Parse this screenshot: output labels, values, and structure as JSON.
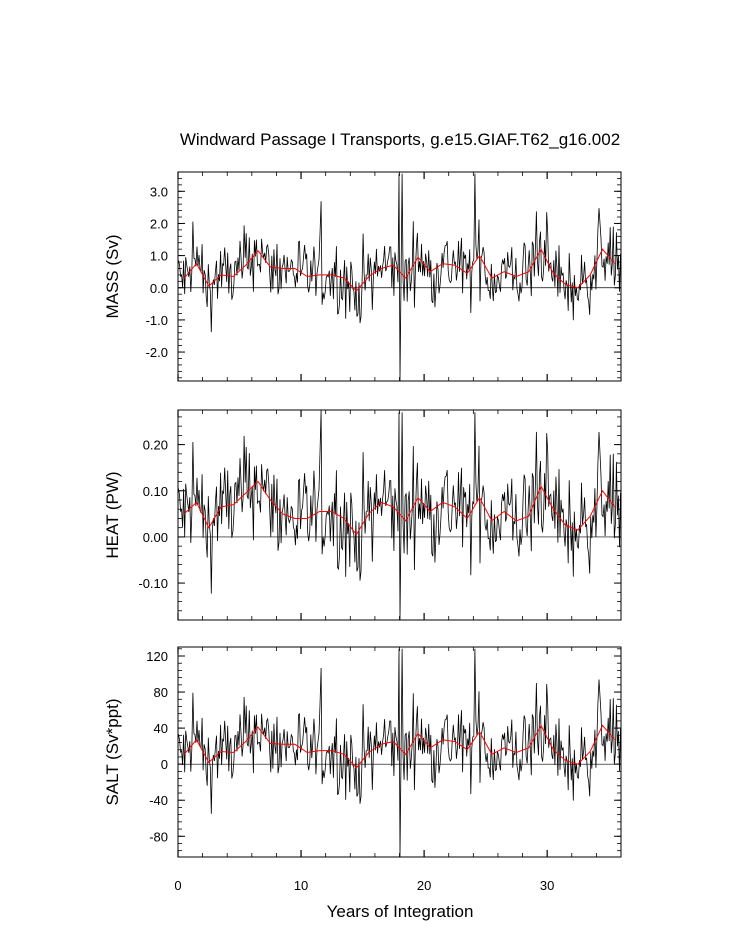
{
  "chart_data": {
    "type": "line",
    "title": "Windward Passage I Transports, g.e15.GIAF.T62_g16.002",
    "xlabel": "Years of Integration",
    "xlim": [
      0,
      36
    ],
    "x_ticks": [
      0,
      10,
      20,
      30
    ],
    "x_tick_labels": [
      "0",
      "10",
      "20",
      "30"
    ],
    "series_styles": {
      "monthly": "#000000",
      "annual": "#ff0000"
    },
    "annual_mean_x": [
      0.5,
      1.5,
      2.5,
      3.5,
      4.5,
      5.5,
      6.5,
      7.5,
      8.5,
      9.5,
      10.5,
      11.5,
      12.5,
      13.5,
      14.5,
      15.5,
      16.5,
      17.5,
      18.5,
      19.5,
      20.5,
      21.5,
      22.5,
      23.5,
      24.5,
      25.5,
      26.5,
      27.5,
      28.5,
      29.5,
      30.5,
      31.5,
      32.5,
      33.5,
      34.5,
      35.5
    ],
    "panels": [
      {
        "ylabel": "MASS (Sv)",
        "ylim": [
          -2.9,
          3.6
        ],
        "y_ticks": [
          -2,
          -1,
          0,
          1,
          2,
          3
        ],
        "y_tick_labels": [
          "-2.0",
          "-1.0",
          "0.0",
          "1.0",
          "2.0",
          "3.0"
        ],
        "annual_mean": [
          0.3,
          0.75,
          0.05,
          0.4,
          0.35,
          0.7,
          1.15,
          0.65,
          0.6,
          0.6,
          0.35,
          0.4,
          0.4,
          0.3,
          -0.1,
          0.35,
          0.6,
          0.7,
          0.3,
          0.95,
          0.5,
          0.75,
          0.7,
          0.45,
          1.0,
          0.3,
          0.5,
          0.35,
          0.5,
          1.2,
          0.45,
          0.1,
          0.0,
          0.4,
          1.2,
          0.75
        ]
      },
      {
        "ylabel": "HEAT (PW)",
        "ylim": [
          -0.18,
          0.275
        ],
        "y_ticks": [
          -0.1,
          0,
          0.1,
          0.2
        ],
        "y_tick_labels": [
          "-0.10",
          "0.00",
          "0.10",
          "0.20"
        ],
        "annual_mean": [
          0.05,
          0.075,
          0.02,
          0.065,
          0.07,
          0.095,
          0.12,
          0.08,
          0.05,
          0.04,
          0.04,
          0.055,
          0.055,
          0.04,
          0.005,
          0.05,
          0.075,
          0.065,
          0.035,
          0.085,
          0.055,
          0.075,
          0.065,
          0.04,
          0.085,
          0.035,
          0.055,
          0.035,
          0.045,
          0.11,
          0.06,
          0.025,
          0.015,
          0.045,
          0.1,
          0.065
        ]
      },
      {
        "ylabel": "SALT (Sv*ppt)",
        "ylim": [
          -103,
          130
        ],
        "y_ticks": [
          -80,
          -40,
          0,
          40,
          80,
          120
        ],
        "y_tick_labels": [
          "-80",
          "-40",
          "0",
          "40",
          "80",
          "120"
        ],
        "annual_mean": [
          11,
          27,
          2,
          14,
          13,
          25,
          41,
          23,
          22,
          22,
          13,
          15,
          15,
          11,
          -4,
          13,
          22,
          25,
          11,
          34,
          18,
          27,
          25,
          16,
          36,
          11,
          18,
          13,
          18,
          43,
          16,
          4,
          0,
          14,
          43,
          27
        ]
      }
    ]
  }
}
